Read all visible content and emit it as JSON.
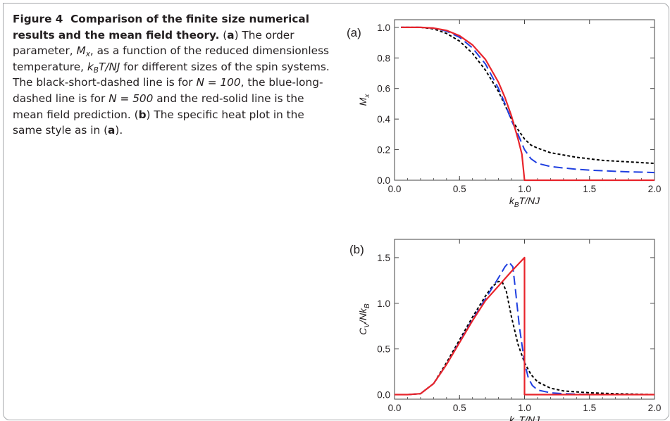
{
  "caption": {
    "fig_label": "Figure 4",
    "title": "Comparison of the finite size numerical results and the mean field theory.",
    "part_a_label": "a",
    "a_text_1": "The order parameter,",
    "a_sym_M": "M",
    "a_sub_x": "x",
    "a_text_2": ", as a function of the reduced dimensionless temperature,",
    "a_sym_k": "k",
    "a_sub_B": "B",
    "a_sym_rest": "T/NJ",
    "a_text_3": "for different sizes of the spin systems. The black-short-dashed line is for",
    "n1_expr": "N = 100",
    "a_text_4": ", the blue-long-dashed line is for",
    "n2_expr": "N = 500",
    "a_text_5": "and the red-solid line is the mean field prediction.",
    "part_b_label": "b",
    "b_text": "The specific heat plot in the same style as in (",
    "b_ref": "a",
    "b_end": ")."
  },
  "colors": {
    "black_series": "#000000",
    "blue_series": "#1f3fe0",
    "red_series": "#e8242b",
    "frame": "#a7a9ac"
  },
  "chart_data": [
    {
      "type": "line",
      "panel_label": "(a)",
      "xlabel_main": "k",
      "xlabel_sub": "B",
      "xlabel_rest": "T/NJ",
      "ylabel_main": "M",
      "ylabel_sub": "x",
      "xlim": [
        0,
        2
      ],
      "ylim": [
        0,
        1.05
      ],
      "xticks": [
        "0.0",
        "0.5",
        "1.0",
        "1.5",
        "2.0"
      ],
      "yticks": [
        "0.0",
        "0.2",
        "0.4",
        "0.6",
        "0.8",
        "1.0"
      ],
      "grid": false,
      "series": [
        {
          "style": "black-short-dashed",
          "x": [
            0.05,
            0.2,
            0.3,
            0.4,
            0.5,
            0.6,
            0.7,
            0.8,
            0.85,
            0.9,
            0.95,
            1.0,
            1.05,
            1.1,
            1.2,
            1.3,
            1.4,
            1.5,
            1.6,
            1.7,
            1.8,
            1.9,
            2.0
          ],
          "y": [
            1.0,
            1.0,
            0.99,
            0.96,
            0.91,
            0.83,
            0.72,
            0.58,
            0.49,
            0.4,
            0.33,
            0.27,
            0.23,
            0.21,
            0.18,
            0.165,
            0.15,
            0.14,
            0.13,
            0.125,
            0.12,
            0.115,
            0.11
          ]
        },
        {
          "style": "blue-long-dashed",
          "x": [
            0.05,
            0.2,
            0.3,
            0.4,
            0.5,
            0.6,
            0.7,
            0.8,
            0.85,
            0.9,
            0.95,
            1.0,
            1.05,
            1.1,
            1.2,
            1.3,
            1.4,
            1.5,
            1.6,
            1.7,
            1.8,
            1.9,
            2.0
          ],
          "y": [
            1.0,
            1.0,
            0.995,
            0.975,
            0.935,
            0.865,
            0.76,
            0.6,
            0.5,
            0.39,
            0.3,
            0.2,
            0.14,
            0.11,
            0.09,
            0.08,
            0.072,
            0.066,
            0.062,
            0.058,
            0.055,
            0.053,
            0.05
          ]
        },
        {
          "style": "red-solid",
          "x": [
            0.05,
            0.2,
            0.3,
            0.4,
            0.5,
            0.6,
            0.7,
            0.8,
            0.85,
            0.9,
            0.95,
            0.98,
            1.0,
            1.0,
            1.5,
            2.0
          ],
          "y": [
            1.0,
            1.0,
            0.995,
            0.98,
            0.945,
            0.885,
            0.79,
            0.64,
            0.54,
            0.42,
            0.27,
            0.17,
            0.0,
            0.0,
            0.0,
            0.0
          ]
        }
      ]
    },
    {
      "type": "line",
      "panel_label": "(b)",
      "xlabel_main": "k",
      "xlabel_sub": "B",
      "xlabel_rest": "T/NJ",
      "ylabel_main": "C",
      "ylabel_sub": "V",
      "ylabel_rest": "/Nk",
      "ylabel_sub2": "B",
      "xlim": [
        0,
        2
      ],
      "ylim": [
        -0.05,
        1.7
      ],
      "xticks": [
        "0.0",
        "0.5",
        "1.0",
        "1.5",
        "2.0"
      ],
      "yticks": [
        "0.0",
        "0.5",
        "1.0",
        "1.5"
      ],
      "grid": false,
      "series": [
        {
          "style": "black-short-dashed",
          "x": [
            0.0,
            0.1,
            0.2,
            0.3,
            0.4,
            0.5,
            0.6,
            0.7,
            0.75,
            0.8,
            0.83,
            0.86,
            0.9,
            0.95,
            1.0,
            1.05,
            1.1,
            1.2,
            1.3,
            1.5,
            1.7,
            2.0
          ],
          "y": [
            0.0,
            0.0,
            0.01,
            0.12,
            0.35,
            0.6,
            0.85,
            1.08,
            1.18,
            1.24,
            1.23,
            1.13,
            0.85,
            0.55,
            0.35,
            0.22,
            0.14,
            0.07,
            0.04,
            0.02,
            0.01,
            0.0
          ]
        },
        {
          "style": "blue-long-dashed",
          "x": [
            0.0,
            0.1,
            0.2,
            0.3,
            0.4,
            0.5,
            0.6,
            0.7,
            0.8,
            0.85,
            0.88,
            0.91,
            0.93,
            0.96,
            1.0,
            1.03,
            1.06,
            1.1,
            1.2,
            1.3,
            1.5,
            2.0
          ],
          "y": [
            0.0,
            0.0,
            0.01,
            0.12,
            0.33,
            0.58,
            0.82,
            1.05,
            1.28,
            1.4,
            1.45,
            1.4,
            1.15,
            0.75,
            0.35,
            0.18,
            0.1,
            0.05,
            0.02,
            0.01,
            0.0,
            0.0
          ]
        },
        {
          "style": "red-solid",
          "x": [
            0.0,
            0.1,
            0.2,
            0.3,
            0.4,
            0.5,
            0.6,
            0.7,
            0.8,
            0.9,
            1.0,
            1.0,
            1.5,
            2.0
          ],
          "y": [
            0.0,
            0.0,
            0.01,
            0.12,
            0.33,
            0.57,
            0.81,
            1.03,
            1.19,
            1.35,
            1.5,
            0.0,
            0.0,
            0.0
          ]
        }
      ]
    }
  ]
}
